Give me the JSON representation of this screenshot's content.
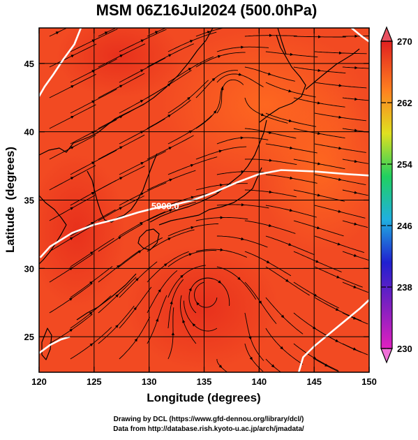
{
  "title": "MSM 06Z16Jul2024 (500.0hPa)",
  "chart_data": {
    "type": "heatmap",
    "title": "MSM 06Z16Jul2024 (500.0hPa)",
    "xlabel": "Longitude (degrees)",
    "ylabel": "Latitude  (degrees)",
    "xlim": [
      120,
      150
    ],
    "ylim": [
      22.4,
      47.6
    ],
    "x_ticks": [
      120,
      125,
      130,
      135,
      140,
      145,
      150
    ],
    "y_ticks": [
      25,
      30,
      35,
      40,
      45
    ],
    "colorbar": {
      "min": 230,
      "max": 270,
      "ticks": [
        270,
        262,
        254,
        246,
        238,
        230
      ],
      "colors_low_to_high": [
        "#e020c0",
        "#2020d0",
        "#20b0e0",
        "#20d060",
        "#e0e020",
        "#ff8020",
        "#e02020"
      ]
    },
    "contour_label": "5900.0",
    "contours": [
      {
        "label": "5900.0",
        "points": [
          [
            120.1,
            30.8
          ],
          [
            121,
            31.6
          ],
          [
            123,
            32.6
          ],
          [
            125,
            33.2
          ],
          [
            127,
            33.6
          ],
          [
            129,
            34.1
          ],
          [
            130.5,
            34.4
          ],
          [
            132,
            34.6
          ],
          [
            134,
            35.0
          ],
          [
            136,
            35.6
          ],
          [
            138,
            36.3
          ],
          [
            140,
            36.9
          ],
          [
            142,
            37.2
          ],
          [
            145,
            37.1
          ],
          [
            148,
            36.9
          ],
          [
            150,
            36.8
          ]
        ]
      },
      {
        "label": "",
        "points": [
          [
            123.8,
            47.6
          ],
          [
            123.2,
            46.4
          ],
          [
            122.2,
            45.3
          ],
          [
            121.3,
            44.2
          ],
          [
            120.5,
            43.3
          ],
          [
            120,
            42.6
          ]
        ]
      },
      {
        "label": "",
        "points": [
          [
            148.4,
            47.6
          ],
          [
            149.3,
            47.0
          ],
          [
            150,
            46.6
          ]
        ]
      },
      {
        "label": "",
        "points": [
          [
            143.6,
            22.4
          ],
          [
            144,
            23.5
          ],
          [
            145,
            24.3
          ],
          [
            146.5,
            25.3
          ],
          [
            148,
            26.3
          ],
          [
            149.2,
            27.1
          ],
          [
            150,
            27.7
          ]
        ]
      },
      {
        "label": "",
        "points": [
          [
            120,
            23.8
          ],
          [
            121,
            24.4
          ],
          [
            122,
            24.8
          ],
          [
            122.8,
            25.0
          ]
        ]
      }
    ],
    "vortices": [
      {
        "lon": 135.2,
        "lat": 28.2,
        "rotation": "ccw"
      },
      {
        "lon": 137.5,
        "lat": 43.3,
        "rotation": "ccw"
      }
    ],
    "grid": true
  },
  "credits": {
    "line1": "Drawing by DCL (https://www.gfd-dennou.org/library/dcl/)",
    "line2": "Data from http://database.rish.kyoto-u.ac.jp/arch/jmadata/"
  }
}
